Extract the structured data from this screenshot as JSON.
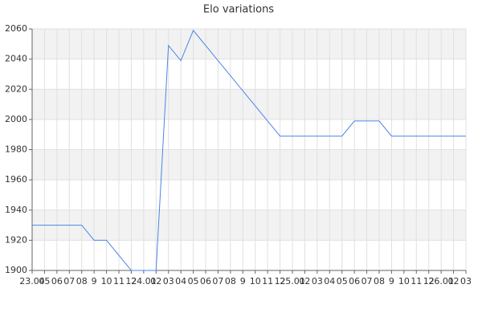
{
  "chart_data": {
    "type": "line",
    "title": "Elo variations",
    "categories": [
      "23.04",
      "05",
      "06",
      "07",
      "08",
      "9",
      "10",
      "11",
      "12",
      "24.01",
      "02",
      "03",
      "04",
      "05",
      "06",
      "07",
      "08",
      "9",
      "10",
      "11",
      "12",
      "25.01",
      "02",
      "03",
      "04",
      "05",
      "06",
      "07",
      "08",
      "9",
      "10",
      "11",
      "12",
      "26.01",
      "02",
      "03"
    ],
    "values": [
      1930,
      1930,
      1930,
      1930,
      1930,
      1920,
      1920,
      1910,
      1900,
      1900,
      1900,
      2049,
      2039,
      2059,
      2049,
      2039,
      2029,
      2019,
      2009,
      1999,
      1989,
      1989,
      1989,
      1989,
      1989,
      1989,
      1999,
      1999,
      1999,
      1989,
      1989,
      1989,
      1989,
      1989,
      1989,
      1989
    ],
    "color": "#4a86e8",
    "ylim": [
      1900,
      2060
    ],
    "yticks": [
      1900,
      1920,
      1940,
      1960,
      1980,
      2000,
      2020,
      2040,
      2060
    ],
    "grid": true
  }
}
